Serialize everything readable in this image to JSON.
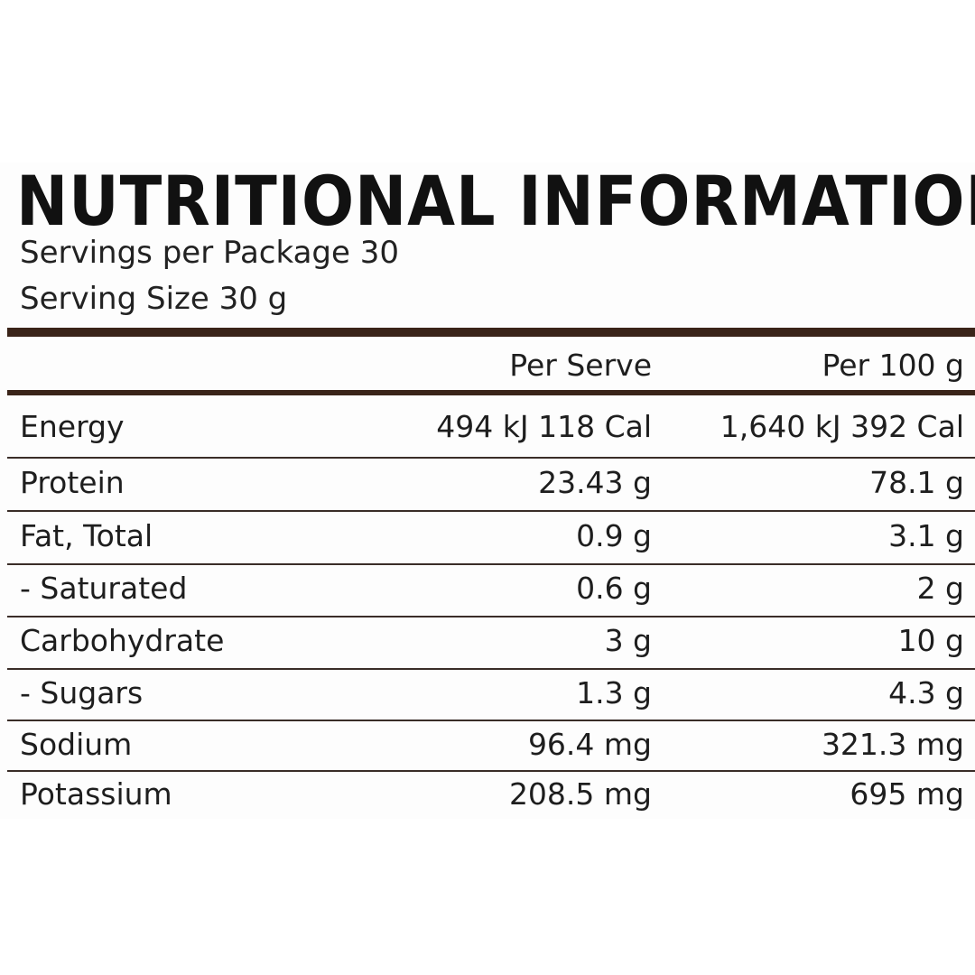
{
  "title": "NUTRITIONAL INFORMATION",
  "servings_per_package": "Servings per Package 30",
  "serving_size": "Serving Size 30 g",
  "headers": {
    "per_serve": "Per Serve",
    "per_100g": "Per 100 g"
  },
  "rows": [
    {
      "name": "Energy",
      "per_serve": "494 kJ  118 Cal",
      "per_100g": "1,640 kJ  392 Cal"
    },
    {
      "name": "Protein",
      "per_serve": "23.43 g",
      "per_100g": "78.1 g"
    },
    {
      "name": "Fat, Total",
      "per_serve": "0.9 g",
      "per_100g": "3.1 g"
    },
    {
      "name": "- Saturated",
      "per_serve": "0.6 g",
      "per_100g": "2 g"
    },
    {
      "name": "Carbohydrate",
      "per_serve": "3 g",
      "per_100g": "10 g"
    },
    {
      "name": "- Sugars",
      "per_serve": "1.3 g",
      "per_100g": "4.3 g"
    },
    {
      "name": "Sodium",
      "per_serve": "96.4 mg",
      "per_100g": "321.3 mg"
    },
    {
      "name": "Potassium",
      "per_serve": "208.5 mg",
      "per_100g": "695 mg"
    }
  ],
  "colors": {
    "rule": "#3a2419",
    "text": "#1e1e1e"
  }
}
